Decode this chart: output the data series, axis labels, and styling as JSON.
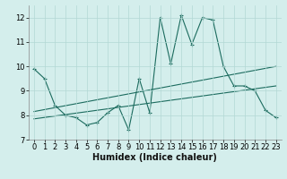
{
  "x": [
    0,
    1,
    2,
    3,
    4,
    5,
    6,
    7,
    8,
    9,
    10,
    11,
    12,
    13,
    14,
    15,
    16,
    17,
    18,
    19,
    20,
    21,
    22,
    23
  ],
  "y_main": [
    9.9,
    9.5,
    8.4,
    8.0,
    7.9,
    7.6,
    7.7,
    8.1,
    8.4,
    7.4,
    9.5,
    8.1,
    12.0,
    10.1,
    12.1,
    10.9,
    12.0,
    11.9,
    10.0,
    9.2,
    9.2,
    9.0,
    8.2,
    7.9
  ],
  "trend1_x": [
    0,
    23
  ],
  "trend1_y": [
    8.15,
    10.0
  ],
  "trend2_x": [
    0,
    23
  ],
  "trend2_y": [
    7.85,
    9.2
  ],
  "line_color": "#1b6b5e",
  "bg_color": "#d4eeec",
  "grid_color": "#b2d8d4",
  "xlabel": "Humidex (Indice chaleur)",
  "ylim": [
    7,
    12.5
  ],
  "xlim": [
    -0.5,
    23.5
  ],
  "yticks": [
    7,
    8,
    9,
    10,
    11,
    12
  ],
  "xticks": [
    0,
    1,
    2,
    3,
    4,
    5,
    6,
    7,
    8,
    9,
    10,
    11,
    12,
    13,
    14,
    15,
    16,
    17,
    18,
    19,
    20,
    21,
    22,
    23
  ],
  "xlabel_fontsize": 7,
  "tick_fontsize": 6
}
